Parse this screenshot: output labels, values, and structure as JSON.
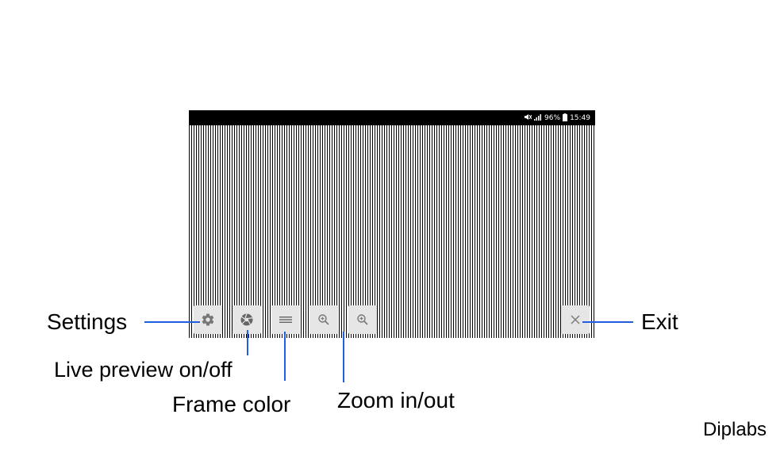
{
  "status_bar": {
    "battery": "96%",
    "time": "15:49",
    "icons": [
      "mute-icon",
      "signal-icon",
      "battery-icon"
    ]
  },
  "toolbar": {
    "buttons": [
      {
        "name": "settings-button",
        "icon": "gear-icon"
      },
      {
        "name": "live-preview-button",
        "icon": "aperture-icon"
      },
      {
        "name": "frame-color-button",
        "icon": "menu-icon"
      },
      {
        "name": "zoom-in-button",
        "icon": "zoom-in-icon"
      },
      {
        "name": "zoom-out-button",
        "icon": "zoom-out-icon"
      },
      {
        "name": "exit-button",
        "icon": "close-icon"
      }
    ]
  },
  "callouts": {
    "settings": "Settings",
    "live_preview": "Live preview on/off",
    "frame_color": "Frame color",
    "zoom": "Zoom in/out",
    "exit": "Exit"
  },
  "brand": "Diplabs",
  "colors": {
    "callout_line": "#1f5fe0",
    "button_bg": "#e6e6e6",
    "status_bar_bg": "#000000"
  }
}
